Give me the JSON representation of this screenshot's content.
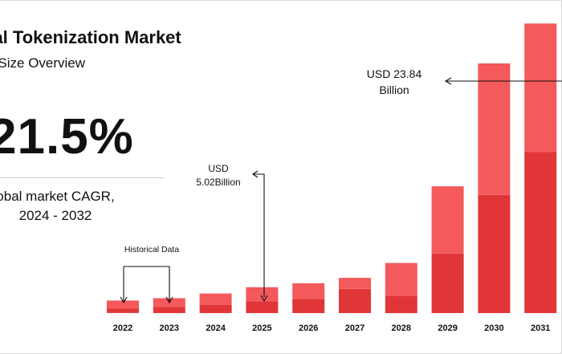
{
  "header": {
    "title": "bal Tokenization Market",
    "subtitle": "ket Size Overview"
  },
  "kpi": {
    "value": "21.5%",
    "label_line1": "obal market CAGR,",
    "label_line2": "2024 - 2032"
  },
  "chart_data": {
    "type": "bar",
    "stacked": true,
    "categories": [
      "2022",
      "2023",
      "2024",
      "2025",
      "2026",
      "2027",
      "2028",
      "2029",
      "2030",
      "2031"
    ],
    "series": [
      {
        "values": [
          0.6,
          0.8,
          1.1,
          1.5,
          1.8,
          3.1,
          2.2,
          7.6,
          15.1,
          20.6
        ]
      },
      {
        "values": [
          1.0,
          1.1,
          1.4,
          1.8,
          2.0,
          1.4,
          4.2,
          8.6,
          16.8,
          16.4
        ]
      }
    ],
    "totals": [
      1.6,
      1.9,
      2.5,
      3.3,
      3.8,
      4.5,
      6.4,
      16.2,
      31.9,
      37.0
    ],
    "ylim": [
      0,
      40
    ],
    "grid": false,
    "colors": {
      "lower": "#e03638",
      "upper": "#f4595c"
    },
    "annotations": {
      "historical": "Historical Data",
      "usd_2025_line1": "USD",
      "usd_2025_line2": "5.02Billion",
      "usd_end_line1": "USD 23.84",
      "usd_end_line2": "Billion"
    }
  }
}
